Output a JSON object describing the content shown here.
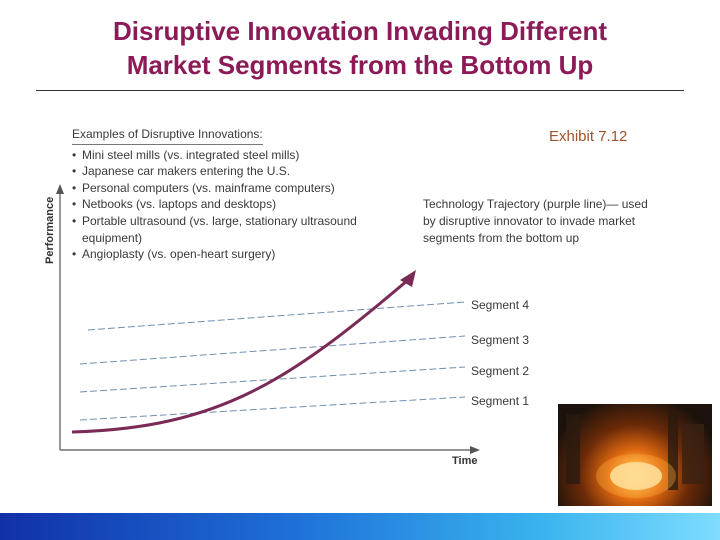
{
  "slide": {
    "title_line1": "Disruptive Innovation Invading Different",
    "title_line2": "Market Segments from the Bottom Up",
    "exhibit": "Exhibit 7.12"
  },
  "figure": {
    "examples_title": "Examples of Disruptive Innovations:",
    "examples": [
      "Mini steel mills (vs. integrated steel mills)",
      "Japanese car makers entering the U.S.",
      "Personal computers (vs. mainframe computers)",
      "Netbooks (vs. laptops and desktops)",
      "Portable ultrasound (vs. large, stationary ultrasound equipment)",
      "Angioplasty (vs. open-heart surgery)"
    ],
    "trajectory_note": "Technology Trajectory (purple line)— used by disruptive innovator to invade market segments from the bottom up",
    "segments": [
      "Segment 4",
      "Segment 3",
      "Segment 2",
      "Segment 1"
    ],
    "y_axis_label": "Performance",
    "x_axis_label": "Time",
    "colors": {
      "title": "#8b1a57",
      "trajectory": "#7a2a55",
      "segment_lines": "#6f8fb0",
      "exhibit": "#a0522d"
    }
  },
  "photo": {
    "subject": "steel mill furnace photo"
  }
}
